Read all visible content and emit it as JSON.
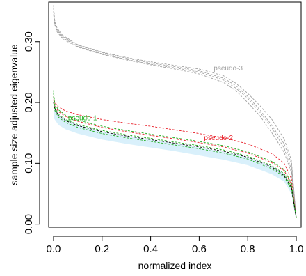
{
  "chart_data": {
    "type": "line",
    "title": "",
    "xlabel": "normalized index",
    "ylabel": "sample size adjusted eigenvalue",
    "xlim": [
      -0.02,
      1.02
    ],
    "ylim": [
      -0.005,
      0.365
    ],
    "x_ticks": [
      "0.0",
      "0.2",
      "0.4",
      "0.6",
      "0.8",
      "1.0"
    ],
    "y_ticks": [
      "0.00",
      "0.10",
      "0.20",
      "0.30"
    ],
    "grid": false,
    "band": {
      "color": "#d9f0fb",
      "upper": [
        [
          0.0,
          0.195
        ],
        [
          0.02,
          0.18
        ],
        [
          0.05,
          0.172
        ],
        [
          0.1,
          0.163
        ],
        [
          0.2,
          0.152
        ],
        [
          0.3,
          0.145
        ],
        [
          0.4,
          0.139
        ],
        [
          0.5,
          0.133
        ],
        [
          0.6,
          0.126
        ],
        [
          0.7,
          0.119
        ],
        [
          0.8,
          0.11
        ],
        [
          0.9,
          0.095
        ],
        [
          0.95,
          0.083
        ],
        [
          0.98,
          0.06
        ],
        [
          1.0,
          0.02
        ]
      ],
      "lower": [
        [
          0.0,
          0.175
        ],
        [
          0.02,
          0.163
        ],
        [
          0.05,
          0.156
        ],
        [
          0.1,
          0.149
        ],
        [
          0.2,
          0.139
        ],
        [
          0.3,
          0.132
        ],
        [
          0.4,
          0.126
        ],
        [
          0.5,
          0.12
        ],
        [
          0.6,
          0.113
        ],
        [
          0.7,
          0.106
        ],
        [
          0.8,
          0.097
        ],
        [
          0.9,
          0.082
        ],
        [
          0.95,
          0.07
        ],
        [
          0.98,
          0.05
        ],
        [
          1.0,
          0.005
        ]
      ]
    },
    "series": [
      {
        "name": "pseudo-3",
        "color": "#a0a0a0",
        "label_color": "#a0a0a0",
        "label_at": [
          0.66,
          0.253
        ],
        "x": [
          0.0,
          0.005,
          0.015,
          0.04,
          0.1,
          0.2,
          0.3,
          0.4,
          0.5,
          0.6,
          0.7,
          0.75,
          0.8,
          0.85,
          0.9,
          0.95,
          0.98,
          1.0
        ],
        "values": [
          0.36,
          0.335,
          0.322,
          0.31,
          0.295,
          0.283,
          0.274,
          0.267,
          0.261,
          0.255,
          0.244,
          0.232,
          0.215,
          0.195,
          0.172,
          0.14,
          0.105,
          0.01
        ]
      },
      {
        "name": "",
        "color": "#a0a0a0",
        "x": [
          0.0,
          0.005,
          0.015,
          0.04,
          0.1,
          0.2,
          0.3,
          0.4,
          0.5,
          0.6,
          0.7,
          0.75,
          0.8,
          0.85,
          0.9,
          0.95,
          0.98,
          1.0
        ],
        "values": [
          0.355,
          0.332,
          0.32,
          0.308,
          0.294,
          0.282,
          0.273,
          0.265,
          0.259,
          0.252,
          0.24,
          0.228,
          0.21,
          0.188,
          0.162,
          0.132,
          0.1,
          0.01
        ]
      },
      {
        "name": "",
        "color": "#a0a0a0",
        "x": [
          0.0,
          0.005,
          0.015,
          0.04,
          0.1,
          0.2,
          0.3,
          0.4,
          0.5,
          0.6,
          0.7,
          0.75,
          0.8,
          0.85,
          0.9,
          0.95,
          0.98,
          1.0
        ],
        "values": [
          0.35,
          0.33,
          0.318,
          0.306,
          0.292,
          0.28,
          0.271,
          0.263,
          0.257,
          0.25,
          0.237,
          0.224,
          0.207,
          0.184,
          0.158,
          0.125,
          0.09,
          0.01
        ]
      },
      {
        "name": "",
        "color": "#a0a0a0",
        "x": [
          0.0,
          0.005,
          0.015,
          0.04,
          0.1,
          0.2,
          0.3,
          0.4,
          0.5,
          0.6,
          0.7,
          0.75,
          0.8,
          0.85,
          0.9,
          0.95,
          0.98,
          1.0
        ],
        "values": [
          0.345,
          0.328,
          0.316,
          0.304,
          0.291,
          0.279,
          0.27,
          0.262,
          0.255,
          0.247,
          0.233,
          0.22,
          0.2,
          0.178,
          0.15,
          0.118,
          0.085,
          0.01
        ]
      },
      {
        "name": "pseudo-2",
        "color": "#e8202a",
        "label_color": "#e8202a",
        "label_at": [
          0.62,
          0.138
        ],
        "x": [
          0.0,
          0.005,
          0.02,
          0.05,
          0.1,
          0.2,
          0.3,
          0.4,
          0.5,
          0.6,
          0.7,
          0.8,
          0.9,
          0.95,
          0.98,
          1.0
        ],
        "values": [
          0.21,
          0.2,
          0.193,
          0.186,
          0.18,
          0.172,
          0.166,
          0.161,
          0.155,
          0.149,
          0.142,
          0.132,
          0.116,
          0.1,
          0.075,
          0.01
        ]
      },
      {
        "name": "",
        "color": "#e8202a",
        "x": [
          0.0,
          0.005,
          0.02,
          0.05,
          0.1,
          0.2,
          0.3,
          0.4,
          0.5,
          0.6,
          0.7,
          0.8,
          0.9,
          0.95,
          0.98,
          1.0
        ],
        "values": [
          0.205,
          0.195,
          0.185,
          0.177,
          0.169,
          0.159,
          0.152,
          0.146,
          0.14,
          0.134,
          0.127,
          0.117,
          0.101,
          0.088,
          0.065,
          0.01
        ]
      },
      {
        "name": "pseudo-1",
        "color": "#20b020",
        "label_color": "#20b020",
        "label_at": [
          0.06,
          0.171
        ],
        "x": [
          0.0,
          0.005,
          0.02,
          0.05,
          0.1,
          0.2,
          0.3,
          0.4,
          0.5,
          0.6,
          0.7,
          0.8,
          0.9,
          0.95,
          0.98,
          1.0
        ],
        "values": [
          0.22,
          0.198,
          0.188,
          0.179,
          0.171,
          0.161,
          0.154,
          0.148,
          0.142,
          0.136,
          0.129,
          0.119,
          0.103,
          0.09,
          0.068,
          0.01
        ]
      },
      {
        "name": "",
        "color": "#20b020",
        "x": [
          0.0,
          0.005,
          0.02,
          0.05,
          0.1,
          0.2,
          0.3,
          0.4,
          0.5,
          0.6,
          0.7,
          0.8,
          0.9,
          0.95,
          0.98,
          1.0
        ],
        "values": [
          0.215,
          0.192,
          0.181,
          0.172,
          0.164,
          0.154,
          0.147,
          0.141,
          0.135,
          0.129,
          0.122,
          0.112,
          0.096,
          0.083,
          0.062,
          0.01
        ]
      },
      {
        "name": "",
        "color": "#20b020",
        "x": [
          0.0,
          0.005,
          0.02,
          0.05,
          0.1,
          0.2,
          0.3,
          0.4,
          0.5,
          0.6,
          0.7,
          0.8,
          0.9,
          0.95,
          0.98,
          1.0
        ],
        "values": [
          0.21,
          0.187,
          0.176,
          0.167,
          0.159,
          0.149,
          0.142,
          0.136,
          0.13,
          0.124,
          0.117,
          0.107,
          0.091,
          0.078,
          0.057,
          0.01
        ]
      },
      {
        "name": "",
        "color": "#000000",
        "x": [
          0.0,
          0.005,
          0.02,
          0.05,
          0.1,
          0.2,
          0.3,
          0.4,
          0.5,
          0.6,
          0.7,
          0.8,
          0.9,
          0.95,
          0.98,
          1.0
        ],
        "values": [
          0.2,
          0.19,
          0.179,
          0.17,
          0.162,
          0.152,
          0.145,
          0.139,
          0.133,
          0.127,
          0.12,
          0.11,
          0.094,
          0.08,
          0.06,
          0.01
        ]
      }
    ]
  }
}
